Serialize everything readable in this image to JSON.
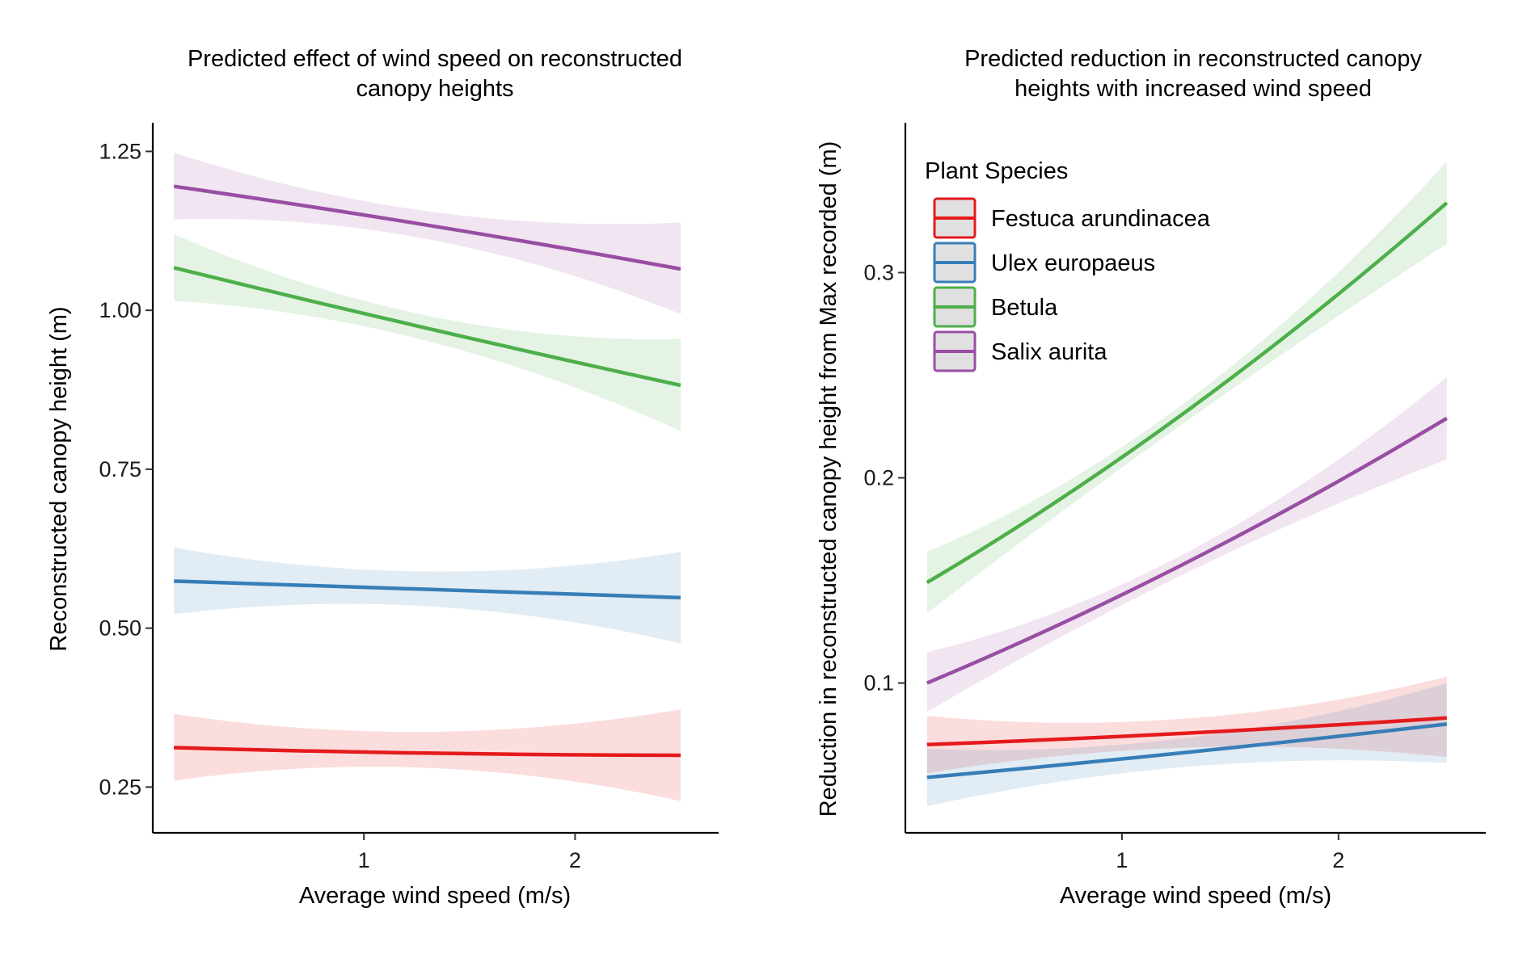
{
  "chart_data": [
    {
      "type": "line",
      "title": "Predicted effect of wind speed on reconstructed canopy heights",
      "title_lines": [
        "Predicted effect of wind speed on reconstructed",
        "canopy heights"
      ],
      "xlabel": "Average wind speed (m/s)",
      "ylabel": "Reconstructed canopy height (m)",
      "xlim": [
        0.0,
        2.68
      ],
      "ylim": [
        0.178,
        1.295
      ],
      "xticks": [
        1,
        2
      ],
      "xtick_labels": [
        "1",
        "2"
      ],
      "yticks": [
        0.25,
        0.5,
        0.75,
        1.0,
        1.25
      ],
      "ytick_labels": [
        "0.25",
        "0.50",
        "0.75",
        "1.00",
        "1.25"
      ],
      "grid": false,
      "legend": "none",
      "series": [
        {
          "name": "Festuca arundinacea",
          "color": "#E41A1C",
          "x": [
            0.1,
            1.0,
            2.5
          ],
          "y": [
            0.312,
            0.305,
            0.3
          ],
          "lower": [
            0.26,
            0.282,
            0.228
          ],
          "upper": [
            0.365,
            0.338,
            0.372
          ]
        },
        {
          "name": "Ulex europaeus",
          "color": "#377EB8",
          "x": [
            0.1,
            1.0,
            2.5
          ],
          "y": [
            0.574,
            0.565,
            0.548
          ],
          "lower": [
            0.522,
            0.538,
            0.476
          ],
          "upper": [
            0.627,
            0.592,
            0.62
          ]
        },
        {
          "name": "Betula",
          "color": "#4DAF4A",
          "x": [
            0.1,
            1.0,
            2.5
          ],
          "y": [
            1.067,
            0.995,
            0.882
          ],
          "lower": [
            1.015,
            0.975,
            0.81
          ],
          "upper": [
            1.12,
            1.015,
            0.955
          ]
        },
        {
          "name": "Salix aurita",
          "color": "#984EA3",
          "x": [
            0.1,
            1.0,
            2.5
          ],
          "y": [
            1.195,
            1.15,
            1.065
          ],
          "lower": [
            1.143,
            1.128,
            0.994
          ],
          "upper": [
            1.248,
            1.172,
            1.138
          ]
        }
      ]
    },
    {
      "type": "line",
      "title": "Predicted reduction in reconstructed canopy heights with increased wind speed",
      "title_lines": [
        "Predicted reduction in reconstructed canopy",
        "heights with increased wind speed"
      ],
      "xlabel": "Average wind speed (m/s)",
      "ylabel": "Reduction in reconstructed canopy height from Max recorded (m)",
      "xlim": [
        0.0,
        2.68
      ],
      "ylim": [
        0.027,
        0.373
      ],
      "xticks": [
        1,
        2
      ],
      "xtick_labels": [
        "1",
        "2"
      ],
      "yticks": [
        0.1,
        0.2,
        0.3
      ],
      "ytick_labels": [
        "0.1",
        "0.2",
        "0.3"
      ],
      "grid": false,
      "legend": "top-left",
      "legend_title": "Plant Species",
      "series": [
        {
          "name": "Festuca arundinacea",
          "color": "#E41A1C",
          "x": [
            0.1,
            1.0,
            2.5
          ],
          "y": [
            0.07,
            0.074,
            0.083
          ],
          "lower": [
            0.056,
            0.067,
            0.064
          ],
          "upper": [
            0.084,
            0.081,
            0.103
          ]
        },
        {
          "name": "Ulex europaeus",
          "color": "#377EB8",
          "x": [
            0.1,
            1.0,
            2.5
          ],
          "y": [
            0.054,
            0.063,
            0.08
          ],
          "lower": [
            0.04,
            0.056,
            0.061
          ],
          "upper": [
            0.068,
            0.07,
            0.1
          ]
        },
        {
          "name": "Betula",
          "color": "#4DAF4A",
          "x": [
            0.1,
            1.0,
            2.5
          ],
          "y": [
            0.149,
            0.21,
            0.334
          ],
          "lower": [
            0.134,
            0.205,
            0.314
          ],
          "upper": [
            0.164,
            0.215,
            0.354
          ]
        },
        {
          "name": "Salix aurita",
          "color": "#984EA3",
          "x": [
            0.1,
            1.0,
            2.5
          ],
          "y": [
            0.1,
            0.143,
            0.229
          ],
          "lower": [
            0.086,
            0.138,
            0.209
          ],
          "upper": [
            0.115,
            0.148,
            0.249
          ]
        }
      ]
    }
  ]
}
